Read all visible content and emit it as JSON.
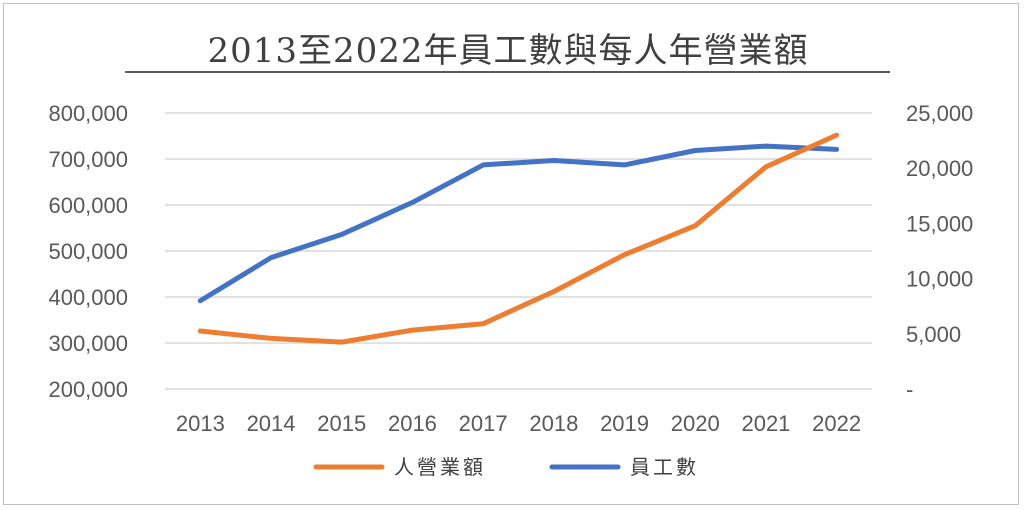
{
  "chart_data": {
    "type": "line",
    "title": "2013至2022年員工數與每人年營業額",
    "categories": [
      "2013",
      "2014",
      "2015",
      "2016",
      "2017",
      "2018",
      "2019",
      "2020",
      "2021",
      "2022"
    ],
    "series": [
      {
        "name": "人營業額",
        "axis": "left",
        "color": "#ED7D31",
        "values": [
          326000,
          310000,
          302000,
          328000,
          342000,
          412000,
          492000,
          555000,
          683000,
          752000
        ]
      },
      {
        "name": "員工數",
        "axis": "right",
        "color": "#4472C4",
        "values": [
          8000,
          11900,
          14000,
          16900,
          20300,
          20700,
          20300,
          21600,
          22000,
          21700
        ]
      }
    ],
    "y_left": {
      "ylim": [
        200000,
        800000
      ],
      "ticks": [
        800000,
        700000,
        600000,
        500000,
        400000,
        300000,
        200000
      ],
      "tick_labels": [
        "800,000",
        "700,000",
        "600,000",
        "500,000",
        "400,000",
        "300,000",
        "200,000"
      ]
    },
    "y_right": {
      "ylim": [
        0,
        25000
      ],
      "ticks": [
        25000,
        20000,
        15000,
        10000,
        5000,
        0
      ],
      "tick_labels": [
        "25,000",
        "20,000",
        "15,000",
        "10,000",
        "5,000",
        "-"
      ]
    },
    "grid": true,
    "legend": "bottom"
  }
}
